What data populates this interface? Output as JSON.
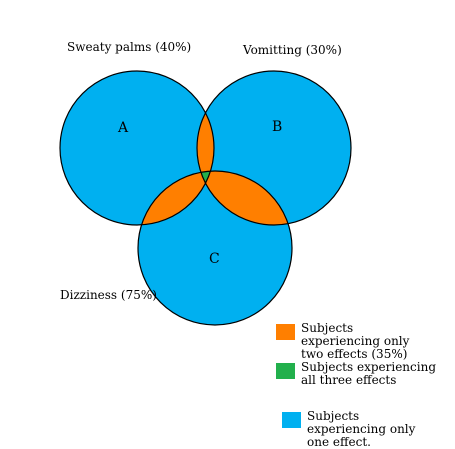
{
  "diagram": {
    "circles": {
      "A": {
        "letter": "A",
        "caption": "Sweaty palms (40%)"
      },
      "B": {
        "letter": "B",
        "caption": "Vomitting (30%)"
      },
      "C": {
        "letter": "C",
        "caption": "Dizziness (75%)"
      }
    },
    "colors": {
      "one_effect": "#00b0f0",
      "two_effects": "#ff7f00",
      "three_effects": "#22b04c",
      "outline": "#000000"
    }
  },
  "legend": [
    {
      "text": "Subjects experiencing only two effects (35%)",
      "color": "#ff7f00"
    },
    {
      "text": "Subjects experiencing all three effects",
      "color": "#22b04c"
    },
    {
      "text": "Subjects experiencing only one effect.",
      "color": "#00b0f0"
    }
  ]
}
